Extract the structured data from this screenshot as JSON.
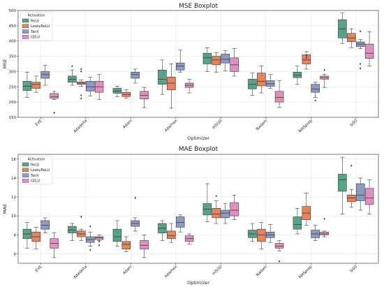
{
  "chart_data": [
    {
      "type": "box",
      "title": "MSE Boxplot",
      "xlabel": "Optimizer",
      "ylabel": "MSE",
      "ylim": [
        150,
        500
      ],
      "yticks": [
        150,
        200,
        250,
        300,
        350,
        400,
        450,
        500
      ],
      "categories": [
        "EVE",
        "Adadelta",
        "Adam",
        "Adamax",
        "mSGD",
        "Nadam",
        "RMSprop",
        "SGD"
      ],
      "legend_title": "Activation",
      "legend_position": "top-left",
      "grid": true,
      "series": [
        {
          "name": "ReLU",
          "color": "#55a486",
          "boxes": [
            {
              "min": 215,
              "q1": 238,
              "median": 252,
              "q3": 268,
              "max": 298,
              "outliers": []
            },
            {
              "min": 255,
              "q1": 265,
              "median": 275,
              "q3": 285,
              "max": 305,
              "outliers": [
                318
              ]
            },
            {
              "min": 218,
              "q1": 229,
              "median": 236,
              "q3": 245,
              "max": 252,
              "outliers": []
            },
            {
              "min": 225,
              "q1": 258,
              "median": 275,
              "q3": 305,
              "max": 338,
              "outliers": []
            },
            {
              "min": 300,
              "q1": 325,
              "median": 345,
              "q3": 360,
              "max": 378,
              "outliers": []
            },
            {
              "min": 222,
              "q1": 243,
              "median": 258,
              "q3": 275,
              "max": 295,
              "outliers": []
            },
            {
              "min": 258,
              "q1": 280,
              "median": 288,
              "q3": 298,
              "max": 318,
              "outliers": []
            },
            {
              "min": 392,
              "q1": 410,
              "median": 440,
              "q3": 470,
              "max": 492,
              "outliers": []
            }
          ]
        },
        {
          "name": "LeakyReLU",
          "color": "#e9845a",
          "boxes": [
            {
              "min": 232,
              "q1": 245,
              "median": 258,
              "q3": 265,
              "max": 285,
              "outliers": []
            },
            {
              "min": 252,
              "q1": 258,
              "median": 262,
              "q3": 266,
              "max": 272,
              "outliers": [
                212,
                222,
                300,
                308
              ]
            },
            {
              "min": 212,
              "q1": 218,
              "median": 225,
              "q3": 232,
              "max": 240,
              "outliers": []
            },
            {
              "min": 180,
              "q1": 240,
              "median": 262,
              "q3": 282,
              "max": 325,
              "outliers": []
            },
            {
              "min": 298,
              "q1": 322,
              "median": 338,
              "q3": 350,
              "max": 362,
              "outliers": []
            },
            {
              "min": 230,
              "q1": 253,
              "median": 268,
              "q3": 295,
              "max": 318,
              "outliers": []
            },
            {
              "min": 308,
              "q1": 325,
              "median": 338,
              "q3": 355,
              "max": 365,
              "outliers": [
                345,
                352
              ]
            },
            {
              "min": 378,
              "q1": 398,
              "median": 410,
              "q3": 425,
              "max": 440,
              "outliers": []
            }
          ]
        },
        {
          "name": "Tanh",
          "color": "#8c9bc6",
          "boxes": [
            {
              "min": 255,
              "q1": 278,
              "median": 290,
              "q3": 300,
              "max": 320,
              "outliers": []
            },
            {
              "min": 220,
              "q1": 236,
              "median": 250,
              "q3": 268,
              "max": 282,
              "outliers": []
            },
            {
              "min": 262,
              "q1": 278,
              "median": 290,
              "q3": 298,
              "max": 308,
              "outliers": []
            },
            {
              "min": 298,
              "q1": 305,
              "median": 318,
              "q3": 328,
              "max": 370,
              "outliers": []
            },
            {
              "min": 302,
              "q1": 328,
              "median": 340,
              "q3": 357,
              "max": 368,
              "outliers": []
            },
            {
              "min": 245,
              "q1": 252,
              "median": 260,
              "q3": 270,
              "max": 290,
              "outliers": []
            },
            {
              "min": 215,
              "q1": 232,
              "median": 242,
              "q3": 258,
              "max": 265,
              "outliers": [
                205
              ]
            },
            {
              "min": 375,
              "q1": 382,
              "median": 390,
              "q3": 397,
              "max": 405,
              "outliers": [
                310,
                325,
                432
              ]
            }
          ]
        },
        {
          "name": "GELU",
          "color": "#e18ec0",
          "boxes": [
            {
              "min": 208,
              "q1": 212,
              "median": 218,
              "q3": 228,
              "max": 235,
              "outliers": [
                165
              ]
            },
            {
              "min": 208,
              "q1": 232,
              "median": 250,
              "q3": 268,
              "max": 290,
              "outliers": []
            },
            {
              "min": 182,
              "q1": 210,
              "median": 222,
              "q3": 235,
              "max": 248,
              "outliers": []
            },
            {
              "min": 230,
              "q1": 248,
              "median": 255,
              "q3": 262,
              "max": 275,
              "outliers": []
            },
            {
              "min": 285,
              "q1": 300,
              "median": 322,
              "q3": 345,
              "max": 375,
              "outliers": []
            },
            {
              "min": 182,
              "q1": 200,
              "median": 215,
              "q3": 235,
              "max": 270,
              "outliers": []
            },
            {
              "min": 248,
              "q1": 275,
              "median": 280,
              "q3": 285,
              "max": 290,
              "outliers": [
                305
              ]
            },
            {
              "min": 318,
              "q1": 343,
              "median": 360,
              "q3": 390,
              "max": 430,
              "outliers": []
            }
          ]
        }
      ]
    },
    {
      "type": "box",
      "title": "MAE Boxplot",
      "xlabel": "Optimizer",
      "ylabel": "MAE",
      "ylim": [
        5,
        16.5
      ],
      "yticks": [
        6,
        8,
        10,
        12,
        14,
        16
      ],
      "categories": [
        "EVE",
        "Adadelta",
        "Adam",
        "Adamax",
        "mSGD",
        "Nadam",
        "RMSprop",
        "SGD"
      ],
      "legend_title": "Activation",
      "legend_position": "top-left",
      "grid": true,
      "series": [
        {
          "name": "ReLU",
          "color": "#55a486",
          "boxes": [
            {
              "min": 6.6,
              "q1": 7.6,
              "median": 8.1,
              "q3": 8.6,
              "max": 9.3,
              "outliers": []
            },
            {
              "min": 7.4,
              "q1": 8.2,
              "median": 8.5,
              "q3": 8.9,
              "max": 9.2,
              "outliers": []
            },
            {
              "min": 6.8,
              "q1": 7.3,
              "median": 7.8,
              "q3": 8.6,
              "max": 9.5,
              "outliers": []
            },
            {
              "min": 7.4,
              "q1": 8.2,
              "median": 8.7,
              "q3": 9.2,
              "max": 9.5,
              "outliers": []
            },
            {
              "min": 9.4,
              "q1": 10.1,
              "median": 10.7,
              "q3": 11.3,
              "max": 13.4,
              "outliers": []
            },
            {
              "min": 7.3,
              "q1": 7.7,
              "median": 8.1,
              "q3": 8.5,
              "max": 9.2,
              "outliers": []
            },
            {
              "min": 8.1,
              "q1": 8.6,
              "median": 9.1,
              "q3": 9.9,
              "max": 10.8,
              "outliers": []
            },
            {
              "min": 10.2,
              "q1": 12.6,
              "median": 13.8,
              "q3": 14.4,
              "max": 16.2,
              "outliers": []
            }
          ]
        },
        {
          "name": "LeakyReLU",
          "color": "#e9845a",
          "boxes": [
            {
              "min": 6.5,
              "q1": 7.3,
              "median": 7.8,
              "q3": 8.3,
              "max": 8.8,
              "outliers": []
            },
            {
              "min": 7.4,
              "q1": 7.8,
              "median": 8.1,
              "q3": 8.4,
              "max": 8.6,
              "outliers": [
                9.9
              ]
            },
            {
              "min": 6.2,
              "q1": 6.5,
              "median": 7.0,
              "q3": 7.3,
              "max": 7.8,
              "outliers": []
            },
            {
              "min": 7.2,
              "q1": 7.6,
              "median": 7.9,
              "q3": 8.4,
              "max": 9.2,
              "outliers": []
            },
            {
              "min": 9.2,
              "q1": 9.8,
              "median": 10.2,
              "q3": 10.8,
              "max": 11.6,
              "outliers": [
                12.1
              ]
            },
            {
              "min": 6.5,
              "q1": 7.3,
              "median": 8.0,
              "q3": 8.6,
              "max": 9.3,
              "outliers": []
            },
            {
              "min": 9.0,
              "q1": 9.6,
              "median": 10.3,
              "q3": 11.0,
              "max": 12.4,
              "outliers": []
            },
            {
              "min": 10.9,
              "q1": 11.5,
              "median": 11.9,
              "q3": 12.2,
              "max": 12.8,
              "outliers": [
                15.3
              ]
            }
          ]
        },
        {
          "name": "Tanh",
          "color": "#8c9bc6",
          "boxes": [
            {
              "min": 8.2,
              "q1": 8.6,
              "median": 9.0,
              "q3": 9.5,
              "max": 9.8,
              "outliers": []
            },
            {
              "min": 6.8,
              "q1": 7.2,
              "median": 7.5,
              "q3": 7.8,
              "max": 8.3,
              "outliers": [
                6.4,
                8.9
              ]
            },
            {
              "min": 8.4,
              "q1": 8.9,
              "median": 9.2,
              "q3": 9.5,
              "max": 9.8,
              "outliers": [
                11.9
              ]
            },
            {
              "min": 8.3,
              "q1": 8.8,
              "median": 9.3,
              "q3": 9.9,
              "max": 10.1,
              "outliers": []
            },
            {
              "min": 9.2,
              "q1": 9.8,
              "median": 10.3,
              "q3": 10.6,
              "max": 11.3,
              "outliers": []
            },
            {
              "min": 7.2,
              "q1": 7.7,
              "median": 8.0,
              "q3": 8.3,
              "max": 9.1,
              "outliers": []
            },
            {
              "min": 7.4,
              "q1": 7.7,
              "median": 8.1,
              "q3": 8.5,
              "max": 9.0,
              "outliers": []
            },
            {
              "min": 10.6,
              "q1": 11.6,
              "median": 12.2,
              "q3": 13.4,
              "max": 14.0,
              "outliers": []
            }
          ]
        },
        {
          "name": "GELU",
          "color": "#e18ec0",
          "boxes": [
            {
              "min": 5.6,
              "q1": 6.6,
              "median": 7.1,
              "q3": 7.6,
              "max": 8.2,
              "outliers": []
            },
            {
              "min": 7.4,
              "q1": 7.5,
              "median": 7.7,
              "q3": 7.8,
              "max": 8.0,
              "outliers": [
                6.9,
                7.3
              ]
            },
            {
              "min": 5.6,
              "q1": 6.5,
              "median": 6.9,
              "q3": 7.4,
              "max": 8.0,
              "outliers": []
            },
            {
              "min": 7.0,
              "q1": 7.3,
              "median": 7.6,
              "q3": 7.9,
              "max": 8.1,
              "outliers": []
            },
            {
              "min": 9.6,
              "q1": 10.0,
              "median": 10.6,
              "q3": 11.4,
              "max": 12.2,
              "outliers": []
            },
            {
              "min": 6.3,
              "q1": 6.6,
              "median": 6.8,
              "q3": 7.1,
              "max": 7.4,
              "outliers": [
                5.2
              ]
            },
            {
              "min": 7.8,
              "q1": 8.0,
              "median": 8.1,
              "q3": 8.3,
              "max": 8.4,
              "outliers": [
                9.7
              ]
            },
            {
              "min": 10.2,
              "q1": 11.2,
              "median": 11.9,
              "q3": 12.9,
              "max": 13.8,
              "outliers": []
            }
          ]
        }
      ]
    }
  ]
}
